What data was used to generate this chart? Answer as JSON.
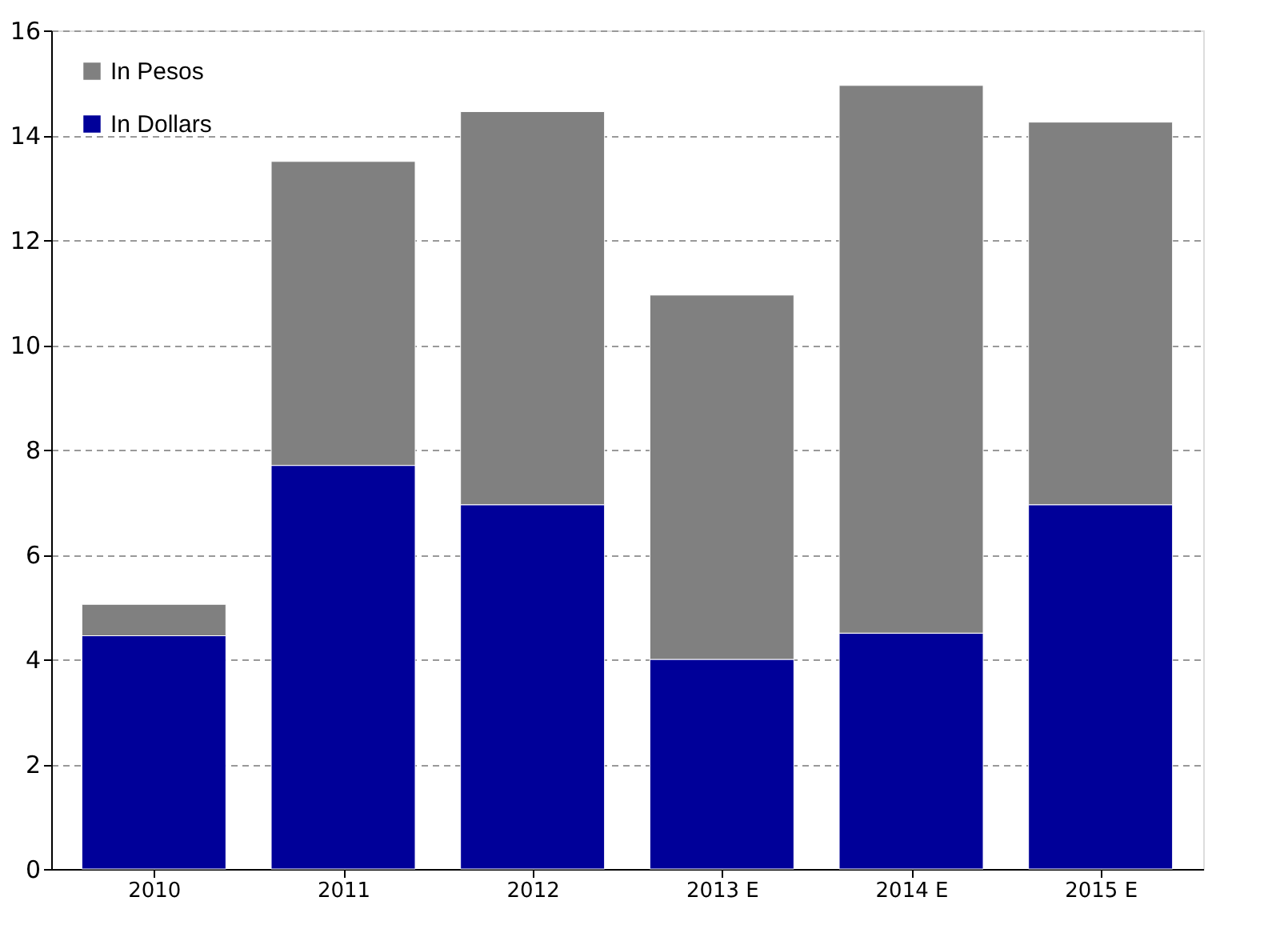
{
  "chart_data": {
    "type": "bar",
    "stacked": true,
    "categories": [
      "2010",
      "2011",
      "2012",
      "2013 E",
      "2014 E",
      "2015 E"
    ],
    "series": [
      {
        "name": "In Dollars",
        "color": "#000099",
        "values": [
          4.45,
          7.7,
          6.95,
          4.0,
          4.5,
          6.95
        ]
      },
      {
        "name": "In Pesos",
        "color": "#808080",
        "values": [
          0.6,
          5.8,
          7.5,
          6.95,
          10.45,
          7.3
        ]
      }
    ],
    "ylim": [
      0,
      16
    ],
    "yticks": [
      0,
      2,
      4,
      6,
      8,
      10,
      12,
      14,
      16
    ],
    "grid": "y",
    "legend": "top left"
  }
}
